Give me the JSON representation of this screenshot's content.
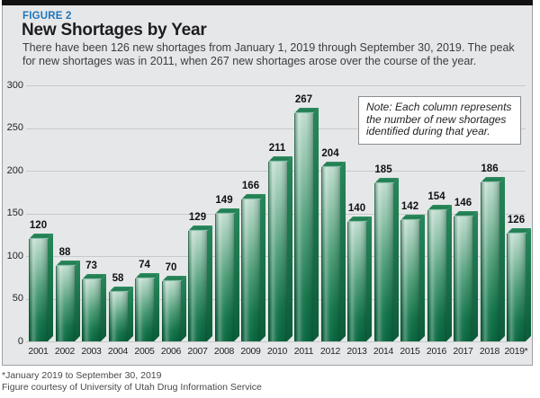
{
  "header": {
    "figure_label": "FIGURE 2",
    "title": "New Shortages by Year",
    "subtitle": "There have been 126 new shortages from January 1, 2019 through September 30, 2019. The peak for new shortages was in 2011, when 267 new shortages arose over the course of the year."
  },
  "chart_data": {
    "type": "bar",
    "title": "New Shortages by Year",
    "categories": [
      "2001",
      "2002",
      "2003",
      "2004",
      "2005",
      "2006",
      "2007",
      "2008",
      "2009",
      "2010",
      "2011",
      "2012",
      "2013",
      "2014",
      "2015",
      "2016",
      "2017",
      "2018",
      "2019*"
    ],
    "values": [
      120,
      88,
      73,
      58,
      74,
      70,
      129,
      149,
      166,
      211,
      267,
      204,
      140,
      185,
      142,
      154,
      146,
      186,
      126
    ],
    "xlabel": "",
    "ylabel": "",
    "ylim": [
      0,
      300
    ],
    "yticks": [
      0,
      50,
      100,
      150,
      200,
      250,
      300
    ],
    "grid": true,
    "legend": "none",
    "data_labels": true,
    "note": "Note: Each column represents the number of new shortages identified during that year."
  },
  "footer": {
    "line1": "*January 2019 to September 30, 2019",
    "line2": "Figure courtesy of University of Utah Drug Information Service"
  },
  "colors": {
    "panel_bg": "#e6e7e8",
    "panel_border": "#9ea0a3",
    "top_rule": "#121212",
    "figure_label_blue": "#1d76bc",
    "gridline": "#c8c9cb",
    "bar_front_light": "#bedcce",
    "bar_front_dark": "#0a6841",
    "bar_side": "#0c5c39",
    "bar_top": "#1c7a4e",
    "text_dark": "#232325"
  }
}
